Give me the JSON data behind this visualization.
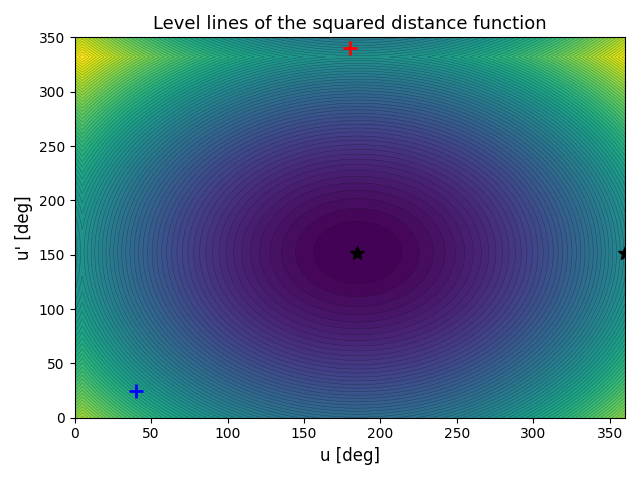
{
  "title": "Level lines of the squared distance function",
  "xlabel": "u [deg]",
  "ylabel": "u' [deg]",
  "xlim": [
    0,
    360
  ],
  "ylim": [
    0,
    350
  ],
  "xticks": [
    0,
    50,
    100,
    150,
    200,
    250,
    300,
    350
  ],
  "yticks": [
    0,
    50,
    100,
    150,
    200,
    250,
    300,
    350
  ],
  "colormap": "viridis",
  "n_levels": 60,
  "red_plus": [
    180,
    340
  ],
  "blue_plus": [
    40,
    25
  ],
  "black_star1": [
    185,
    152
  ],
  "black_star2": [
    360,
    152
  ],
  "marker_size": 10,
  "title_fontsize": 13,
  "u0": 40,
  "u0p": 25,
  "u1": 180,
  "u1p": 340
}
